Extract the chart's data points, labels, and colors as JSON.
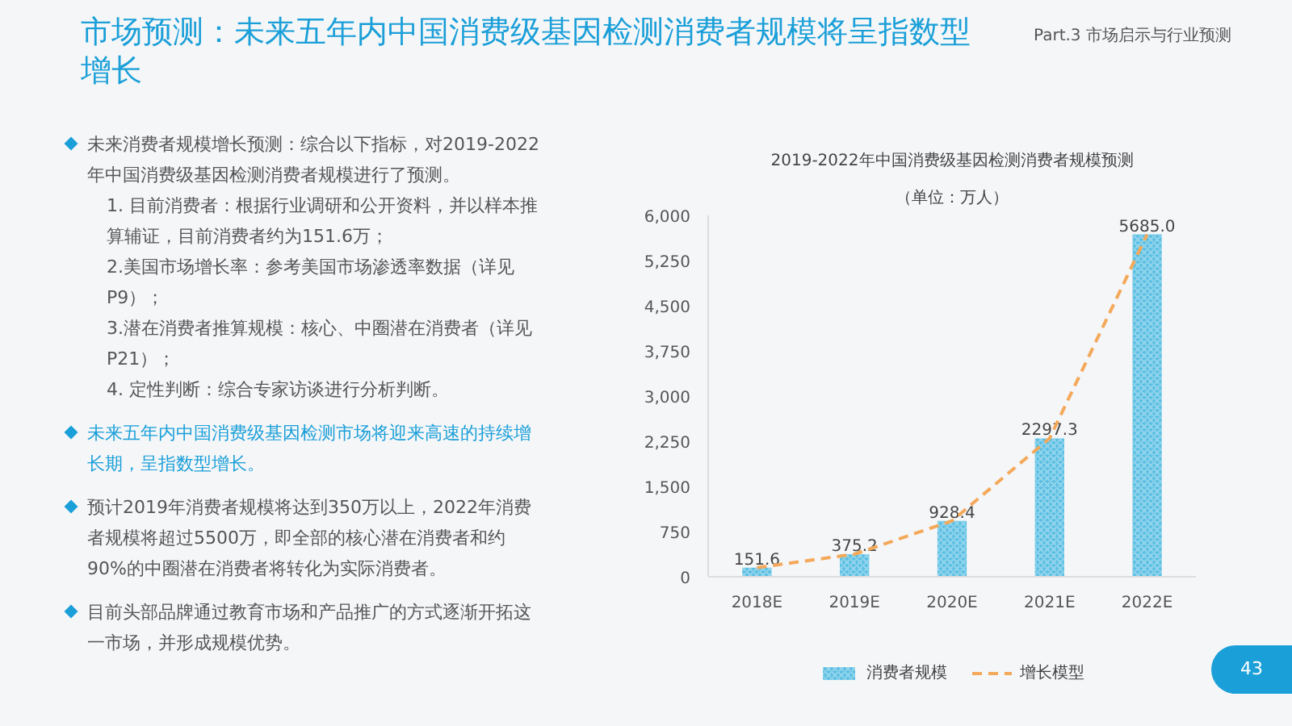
{
  "chart_data": {
    "type": "bar",
    "title": "2019-2022年中国消费级基因检测消费者规模预测",
    "subtitle": "（单位：万人）",
    "categories": [
      "2018E",
      "2019E",
      "2020E",
      "2021E",
      "2022E"
    ],
    "series": [
      {
        "name": "消费者规模",
        "color": "#5bbfe3",
        "values": [
          151.6,
          375.2,
          928.4,
          2297.3,
          5685.0
        ],
        "value_labels": [
          "151.6",
          "375.2",
          "928.4",
          "2297.3",
          "5685.0"
        ]
      },
      {
        "name": "增长模型",
        "type": "line",
        "color": "#f4a95a",
        "line_style": "dashed",
        "values": [
          151.6,
          375.2,
          928.4,
          2297.3,
          5685.0
        ]
      }
    ],
    "ylim": [
      0,
      6000
    ],
    "yticks": [
      0,
      {
        "value": 750,
        "label": "750"
      },
      {
        "value": 1500,
        "label": "1,500"
      },
      {
        "value": 2250,
        "label": "2,250"
      },
      {
        "value": 3000,
        "label": "3,000"
      },
      {
        "value": 3750,
        "label": "3,750"
      },
      {
        "value": 4500,
        "label": "4,500"
      },
      {
        "value": 5250,
        "label": "5,250"
      },
      {
        "value": 6000,
        "label": "6,000"
      }
    ],
    "grid": false,
    "legend": "bottom",
    "annotations": [
      "市场预测：未来五年内中国消费级基因检测消费者规模将呈指数型增长",
      "Part.3 市场启示与行业预测",
      "未来消费者规模增长预测：综合以下指标，对2019-2022年中国消费级基因检测消费者规模进行了预测。",
      "1. 目前消费者：根据行业调研和公开资料，并以样本推算辅证，目前消费者约为151.6万；",
      "2.美国市场增长率：参考美国市场渗透率数据（详见P9）；",
      "3.潜在消费者推算规模：核心、中圈潜在消费者（详见P21）；",
      "4. 定性判断：综合专家访谈进行分析判断。",
      "未来五年内中国消费级基因检测市场将迎来高速的持续增长期，呈指数型增长。",
      "预计2019年消费者规模将达到350万以上，2022年消费者规模将超过5500万，即全部的核心潜在消费者和约90%的中圈潜在消费者将转化为实际消费者。",
      "目前头部品牌通过教育市场和产品推广的方式逐渐开拓这一市场，并形成规模优势。",
      "43"
    ]
  }
}
